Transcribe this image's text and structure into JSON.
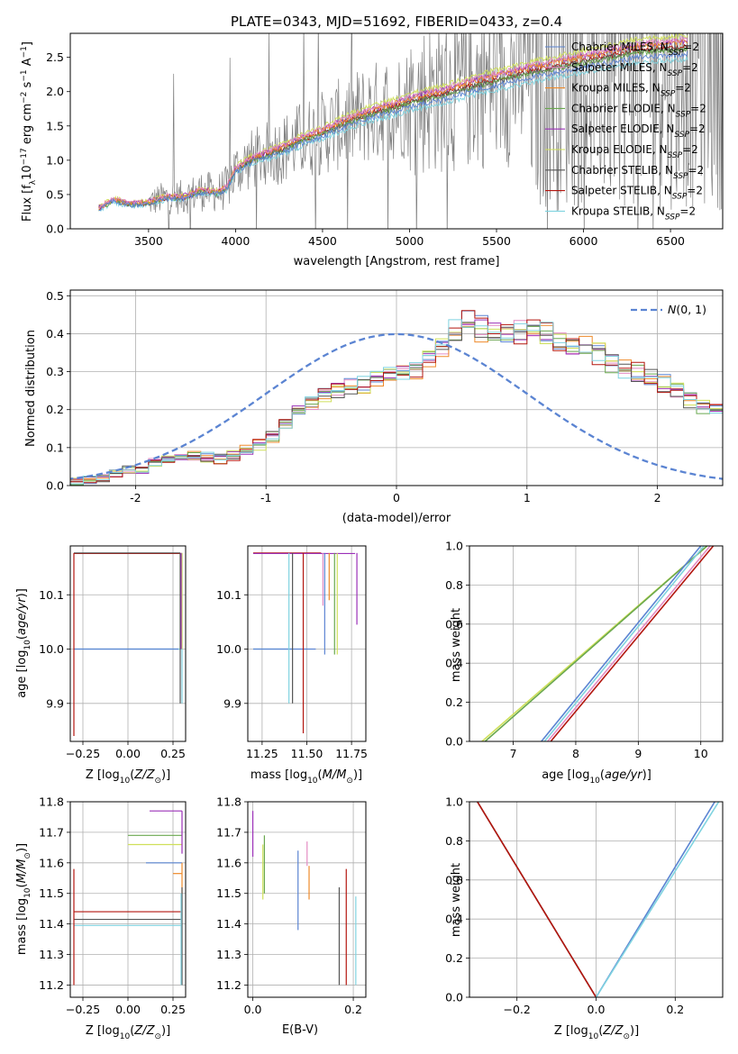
{
  "colors": {
    "chabrier_miles": "#5b84d2",
    "salpeter_miles": "#e48cc4",
    "kroupa_miles": "#ee8a2a",
    "chabrier_elodie": "#6aa84f",
    "salpeter_elodie": "#9b30b8",
    "kroupa_elodie": "#cfe05a",
    "chabrier_stelib": "#555555",
    "salpeter_stelib": "#b3160f",
    "kroupa_stelib": "#7fd3e0",
    "observed": "#808080",
    "gauss": "#5b84d2",
    "grid": "#b0b0b0"
  },
  "legend_labels": [
    {
      "pre": "Chabrier MILES, N",
      "sub": "SSP",
      "post": "=2"
    },
    {
      "pre": "Salpeter MILES, N",
      "sub": "SSP",
      "post": "=2"
    },
    {
      "pre": "Kroupa MILES, N",
      "sub": "SSP",
      "post": "=2"
    },
    {
      "pre": "Chabrier ELODIE, N",
      "sub": "SSP",
      "post": "=2"
    },
    {
      "pre": "Salpeter ELODIE, N",
      "sub": "SSP",
      "post": "=2"
    },
    {
      "pre": "Kroupa ELODIE, N",
      "sub": "SSP",
      "post": "=2"
    },
    {
      "pre": "Chabrier STELIB, N",
      "sub": "SSP",
      "post": "=2"
    },
    {
      "pre": "Salpeter STELIB, N",
      "sub": "SSP",
      "post": "=2"
    },
    {
      "pre": "Kroupa STELIB, N",
      "sub": "SSP",
      "post": "=2"
    }
  ],
  "chart_data": [
    {
      "id": "spectrum",
      "type": "line",
      "title": "PLATE=0343, MJD=51692, FIBERID=0433, z=0.4",
      "xlabel": "wavelength [Angstrom, rest frame]",
      "ylabel": "Flux [f$_\\lambda$10$^{-17}$ erg cm$^{-2}$ s$^{-1}$ A$^{-1}$]",
      "xlim": [
        3050,
        6800
      ],
      "ylim": [
        0,
        2.85
      ],
      "xticks": [
        3500,
        4000,
        4500,
        5000,
        5500,
        6000,
        6500
      ],
      "yticks": [
        0.0,
        0.5,
        1.0,
        1.5,
        2.0,
        2.5
      ],
      "grid": false,
      "legend_position": "top-right",
      "continuum": {
        "x": [
          3214,
          3300,
          3400,
          3500,
          3600,
          3700,
          3800,
          3900,
          3950,
          4000,
          4100,
          4200,
          4300,
          4400,
          4500,
          4600,
          4700,
          4800,
          4900,
          5000,
          5100,
          5200,
          5300,
          5400,
          5500,
          5600,
          5700,
          5800,
          5900,
          6000,
          6100,
          6200,
          6300,
          6400,
          6500,
          6600
        ],
        "y": [
          0.3,
          0.42,
          0.36,
          0.38,
          0.46,
          0.46,
          0.55,
          0.53,
          0.6,
          0.86,
          1.02,
          1.1,
          1.2,
          1.32,
          1.4,
          1.52,
          1.62,
          1.7,
          1.77,
          1.85,
          1.92,
          1.97,
          2.05,
          2.12,
          2.18,
          2.24,
          2.3,
          2.35,
          2.4,
          2.45,
          2.5,
          2.55,
          2.6,
          2.62,
          2.64,
          2.66
        ]
      },
      "series_offsets": [
        -0.08,
        0.08,
        0.05,
        -0.03,
        0.06,
        0.12,
        -0.02,
        0.0,
        -0.14
      ],
      "observed_range": [
        3500,
        6800
      ]
    },
    {
      "id": "residuals",
      "type": "histogram",
      "xlabel": "(data-model)/error",
      "ylabel": "Normed distribution",
      "xlim": [
        -2.5,
        2.5
      ],
      "ylim": [
        0,
        0.515
      ],
      "xticks": [
        -2,
        -1,
        0,
        1,
        2
      ],
      "yticks": [
        0.0,
        0.1,
        0.2,
        0.3,
        0.4,
        0.5
      ],
      "grid": true,
      "legend_label": "N(0,1)",
      "bin_width": 0.1,
      "bin_start": -2.6,
      "base_values": [
        0.01,
        0.01,
        0.015,
        0.02,
        0.03,
        0.04,
        0.04,
        0.06,
        0.065,
        0.075,
        0.08,
        0.075,
        0.07,
        0.08,
        0.09,
        0.11,
        0.13,
        0.16,
        0.2,
        0.22,
        0.24,
        0.25,
        0.26,
        0.27,
        0.28,
        0.29,
        0.3,
        0.31,
        0.33,
        0.36,
        0.4,
        0.43,
        0.42,
        0.41,
        0.4,
        0.4,
        0.41,
        0.4,
        0.38,
        0.37,
        0.36,
        0.35,
        0.33,
        0.31,
        0.3,
        0.29,
        0.27,
        0.25,
        0.23,
        0.21,
        0.2,
        0.18,
        0.16,
        0.14,
        0.12,
        0.1,
        0.08,
        0.06,
        0.05,
        0.04,
        0.03,
        0.03
      ]
    },
    {
      "id": "age-vs-Z",
      "type": "error-bars",
      "xlabel": "Z [log$_{10}$(Z/Z$_\\odot$)]",
      "ylabel": "age  [log$_{10}$($age/yr$)]",
      "xlim": [
        -0.32,
        0.32
      ],
      "ylim": [
        9.83,
        10.19
      ],
      "xticks": [
        -0.25,
        0.0,
        0.25
      ],
      "xtick_labels": [
        "−0.25",
        "0.00",
        "0.25"
      ],
      "yticks": [
        9.9,
        10.0,
        10.1
      ],
      "grid": true,
      "hbars": [
        {
          "series": 8,
          "x0": -0.3,
          "x1": 0.3,
          "y": 10.0
        },
        {
          "series": 0,
          "x0": -0.3,
          "x1": 0.28,
          "y": 10.0
        },
        {
          "series": 7,
          "x0": -0.3,
          "x1": 0.3,
          "y": 10.176
        },
        {
          "series": 6,
          "x0": -0.3,
          "x1": 0.29,
          "y": 10.177
        }
      ],
      "vbars": [
        {
          "series": 7,
          "x": -0.3,
          "y0": 9.84,
          "y1": 10.177
        },
        {
          "series": 6,
          "x": 0.29,
          "y0": 9.9,
          "y1": 10.177
        },
        {
          "series": 8,
          "x": 0.3,
          "y0": 9.9,
          "y1": 10.177
        },
        {
          "series": 5,
          "x": 0.3,
          "y0": 10.0,
          "y1": 10.177
        },
        {
          "series": 4,
          "x": 0.295,
          "y0": 10.0,
          "y1": 10.177
        }
      ]
    },
    {
      "id": "age-vs-mass",
      "type": "error-bars",
      "xlabel": "mass [log$_{10}$($M/M_\\odot$)]",
      "ylabel": "",
      "xlim": [
        11.17,
        11.83
      ],
      "ylim": [
        9.83,
        10.19
      ],
      "xticks": [
        11.25,
        11.5,
        11.75
      ],
      "xtick_labels": [
        "11.25",
        "11.50",
        "11.75"
      ],
      "yticks": [
        9.9,
        10.0,
        10.1
      ],
      "grid": true,
      "hbars": [
        {
          "series": 7,
          "x0": 11.2,
          "x1": 11.58,
          "y": 10.177
        },
        {
          "series": 4,
          "x0": 11.2,
          "x1": 11.77,
          "y": 10.176
        },
        {
          "series": 8,
          "x0": 11.2,
          "x1": 11.42,
          "y": 10.0
        },
        {
          "series": 0,
          "x0": 11.2,
          "x1": 11.55,
          "y": 10.0
        }
      ],
      "vbars": [
        {
          "series": 8,
          "x": 11.4,
          "y0": 9.9,
          "y1": 10.177
        },
        {
          "series": 6,
          "x": 11.42,
          "y0": 9.9,
          "y1": 10.177
        },
        {
          "series": 7,
          "x": 11.48,
          "y0": 9.845,
          "y1": 10.177
        },
        {
          "series": 1,
          "x": 11.59,
          "y0": 10.08,
          "y1": 10.177
        },
        {
          "series": 0,
          "x": 11.6,
          "y0": 9.99,
          "y1": 10.177
        },
        {
          "series": 2,
          "x": 11.625,
          "y0": 10.09,
          "y1": 10.177
        },
        {
          "series": 3,
          "x": 11.655,
          "y0": 9.99,
          "y1": 10.177
        },
        {
          "series": 5,
          "x": 11.67,
          "y0": 9.99,
          "y1": 10.177
        },
        {
          "series": 4,
          "x": 11.78,
          "y0": 10.045,
          "y1": 10.177
        }
      ]
    },
    {
      "id": "mass-weight-vs-age",
      "type": "line",
      "xlabel": "age  [log$_{10}$($age/yr$)]",
      "ylabel": "mass weight",
      "xlim": [
        6.3,
        10.35
      ],
      "ylim": [
        0,
        1.0
      ],
      "xticks": [
        7,
        8,
        9,
        10
      ],
      "yticks": [
        0.0,
        0.2,
        0.4,
        0.6,
        0.8,
        1.0
      ],
      "grid": true,
      "lines": [
        {
          "series": 5,
          "x": [
            6.5,
            10.1
          ],
          "y": [
            0.0,
            1.0
          ]
        },
        {
          "series": 3,
          "x": [
            6.55,
            10.1
          ],
          "y": [
            0.0,
            1.0
          ]
        },
        {
          "series": 0,
          "x": [
            7.45,
            10.0
          ],
          "y": [
            0.0,
            1.0
          ]
        },
        {
          "series": 8,
          "x": [
            7.5,
            10.05
          ],
          "y": [
            0.0,
            1.0
          ]
        },
        {
          "series": 1,
          "x": [
            7.55,
            10.15
          ],
          "y": [
            0.0,
            1.0
          ]
        },
        {
          "series": 7,
          "x": [
            7.6,
            10.2
          ],
          "y": [
            0.0,
            1.0
          ]
        }
      ]
    },
    {
      "id": "mass-vs-Z",
      "type": "error-bars",
      "xlabel": "Z [log$_{10}$(Z/Z$_\\odot$)]",
      "ylabel": "mass [log$_{10}$($M/M_\\odot$)]",
      "xlim": [
        -0.32,
        0.32
      ],
      "ylim": [
        11.16,
        11.8
      ],
      "xticks": [
        -0.25,
        0.0,
        0.25
      ],
      "xtick_labels": [
        "−0.25",
        "0.00",
        "0.25"
      ],
      "yticks": [
        11.2,
        11.3,
        11.4,
        11.5,
        11.6,
        11.7,
        11.8
      ],
      "grid": true,
      "hbars": [
        {
          "series": 4,
          "x0": 0.12,
          "x1": 0.3,
          "y": 11.77
        },
        {
          "series": 3,
          "x0": 0.0,
          "x1": 0.3,
          "y": 11.69
        },
        {
          "series": 5,
          "x0": 0.0,
          "x1": 0.3,
          "y": 11.66
        },
        {
          "series": 0,
          "x0": 0.1,
          "x1": 0.3,
          "y": 11.6
        },
        {
          "series": 2,
          "x0": 0.25,
          "x1": 0.3,
          "y": 11.565
        },
        {
          "series": 7,
          "x0": -0.3,
          "x1": 0.3,
          "y": 11.44
        },
        {
          "series": 6,
          "x0": -0.3,
          "x1": 0.3,
          "y": 11.415
        },
        {
          "series": 8,
          "x0": -0.3,
          "x1": 0.3,
          "y": 11.395
        }
      ],
      "vbars": [
        {
          "series": 7,
          "x": -0.3,
          "y0": 11.2,
          "y1": 11.58
        },
        {
          "series": 4,
          "x": 0.3,
          "y0": 11.63,
          "y1": 11.77
        },
        {
          "series": 2,
          "x": 0.3,
          "y0": 11.5,
          "y1": 11.6
        },
        {
          "series": 6,
          "x": 0.3,
          "y0": 11.2,
          "y1": 11.52
        },
        {
          "series": 8,
          "x": 0.295,
          "y0": 11.2,
          "y1": 11.5
        }
      ]
    },
    {
      "id": "mass-vs-ebv",
      "type": "error-bars",
      "xlabel": "E(B-V)",
      "ylabel": "",
      "xlim": [
        -0.01,
        0.225
      ],
      "ylim": [
        11.16,
        11.8
      ],
      "xticks": [
        0.0,
        0.2
      ],
      "xtick_labels": [
        "0.0",
        "0.2"
      ],
      "yticks": [
        11.2,
        11.3,
        11.4,
        11.5,
        11.6,
        11.7,
        11.8
      ],
      "grid": true,
      "vbars": [
        {
          "series": 4,
          "x": 0.0,
          "y0": 11.62,
          "y1": 11.77
        },
        {
          "series": 5,
          "x": 0.02,
          "y0": 11.48,
          "y1": 11.66
        },
        {
          "series": 3,
          "x": 0.023,
          "y0": 11.5,
          "y1": 11.69
        },
        {
          "series": 0,
          "x": 0.09,
          "y0": 11.38,
          "y1": 11.64
        },
        {
          "series": 1,
          "x": 0.108,
          "y0": 11.59,
          "y1": 11.67
        },
        {
          "series": 2,
          "x": 0.112,
          "y0": 11.48,
          "y1": 11.59
        },
        {
          "series": 6,
          "x": 0.172,
          "y0": 11.2,
          "y1": 11.52
        },
        {
          "series": 7,
          "x": 0.186,
          "y0": 11.2,
          "y1": 11.58
        },
        {
          "series": 8,
          "x": 0.205,
          "y0": 11.2,
          "y1": 11.49
        }
      ]
    },
    {
      "id": "mass-weight-vs-Z",
      "type": "line",
      "xlabel": "Z [log$_{10}$(Z/Z$_\\odot$)]",
      "ylabel": "mass weight",
      "xlim": [
        -0.32,
        0.32
      ],
      "ylim": [
        0,
        1.0
      ],
      "xticks": [
        -0.2,
        0.0,
        0.2
      ],
      "xtick_labels": [
        "−0.2",
        "0.0",
        "0.2"
      ],
      "yticks": [
        0.0,
        0.2,
        0.4,
        0.6,
        0.8,
        1.0
      ],
      "grid": true,
      "lines": [
        {
          "series": 6,
          "x": [
            -0.3,
            0.0
          ],
          "y": [
            1.0,
            0.0
          ]
        },
        {
          "series": 7,
          "x": [
            -0.3,
            0.0
          ],
          "y": [
            1.0,
            0.0
          ]
        },
        {
          "series": 0,
          "x": [
            0.0,
            0.3
          ],
          "y": [
            0.0,
            1.0
          ]
        },
        {
          "series": 8,
          "x": [
            0.0,
            0.31
          ],
          "y": [
            0.0,
            1.0
          ]
        }
      ]
    }
  ]
}
